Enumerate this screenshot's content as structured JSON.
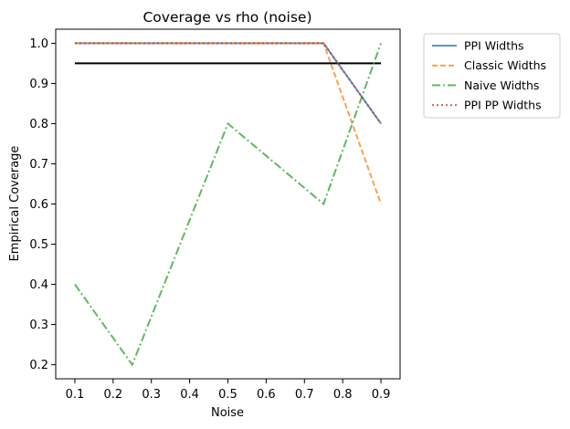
{
  "chart_data": {
    "type": "line",
    "title": "Coverage vs rho (noise)",
    "xlabel": "Noise",
    "ylabel": "Empirical Coverage",
    "x": [
      0.1,
      0.25,
      0.5,
      0.75,
      0.9
    ],
    "xlim": [
      0.05,
      0.95
    ],
    "ylim": [
      0.165,
      1.035
    ],
    "xticks": [
      "0.1",
      "0.2",
      "0.3",
      "0.4",
      "0.5",
      "0.6",
      "0.7",
      "0.8",
      "0.9"
    ],
    "yticks": [
      "0.2",
      "0.3",
      "0.4",
      "0.5",
      "0.6",
      "0.7",
      "0.8",
      "0.9",
      "1.0"
    ],
    "grid": false,
    "legend_position": "outside-upper-right",
    "reference_line": {
      "y": 0.95,
      "x_range": [
        0.1,
        0.9
      ],
      "color": "#000000"
    },
    "series": [
      {
        "name": "PPI Widths",
        "values": [
          1.0,
          1.0,
          1.0,
          1.0,
          0.8
        ],
        "color": "#1f77b4",
        "style": "solid"
      },
      {
        "name": "Classic Widths",
        "values": [
          1.0,
          1.0,
          1.0,
          1.0,
          0.6
        ],
        "color": "#ff7f0e",
        "style": "dashed"
      },
      {
        "name": "Naive Widths",
        "values": [
          0.4,
          0.2,
          0.8,
          0.6,
          1.0
        ],
        "color": "#2ca02c",
        "style": "dashdot"
      },
      {
        "name": "PPI PP Widths",
        "values": [
          1.0,
          1.0,
          1.0,
          1.0,
          0.8
        ],
        "color": "#d62728",
        "style": "dotted"
      }
    ]
  }
}
